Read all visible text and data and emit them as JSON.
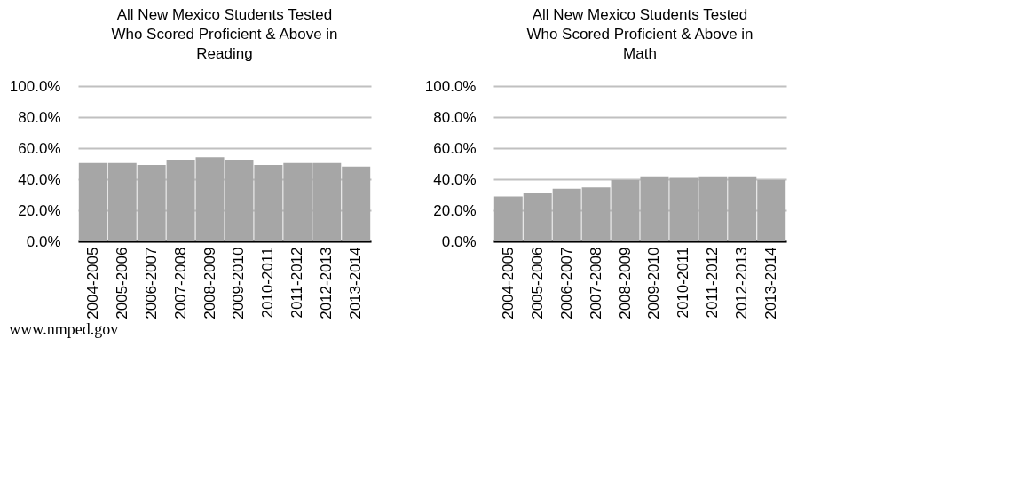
{
  "chart_data": [
    {
      "type": "bar",
      "title": "All New Mexico Students Tested\nWho Scored Proficient & Above in\nReading",
      "categories": [
        "2004-2005",
        "2005-2006",
        "2006-2007",
        "2007-2008",
        "2008-2009",
        "2009-2010",
        "2010-2011",
        "2011-2012",
        "2012-2013",
        "2013-2014"
      ],
      "values": [
        50.4,
        50.4,
        49.1,
        52.6,
        54.1,
        52.6,
        49.1,
        50.4,
        50.4,
        48.2
      ],
      "color": "#a6a6a6",
      "ylim": [
        0,
        100
      ],
      "yticks": [
        {
          "value": 0,
          "label": "0.0%"
        },
        {
          "value": 20,
          "label": "20.0%"
        },
        {
          "value": 40,
          "label": "40.0%"
        },
        {
          "value": 60,
          "label": "60.0%"
        },
        {
          "value": 80,
          "label": "80.0%"
        },
        {
          "value": 100,
          "label": "100.0%"
        }
      ],
      "grid": "y",
      "annotations": [
        "www.nmped.gov"
      ]
    },
    {
      "type": "bar",
      "title": "All New Mexico Students Tested\nWho Scored Proficient & Above in\nMath",
      "categories": [
        "2004-2005",
        "2005-2006",
        "2006-2007",
        "2007-2008",
        "2008-2009",
        "2009-2010",
        "2010-2011",
        "2011-2012",
        "2012-2013",
        "2013-2014"
      ],
      "values": [
        28.9,
        31.3,
        33.8,
        34.7,
        39.5,
        41.9,
        40.9,
        41.9,
        41.9,
        39.5
      ],
      "color": "#a6a6a6",
      "ylim": [
        0,
        100
      ],
      "yticks": [
        {
          "value": 0,
          "label": "0.0%"
        },
        {
          "value": 20,
          "label": "20.0%"
        },
        {
          "value": 40,
          "label": "40.0%"
        },
        {
          "value": 60,
          "label": "60.0%"
        },
        {
          "value": 80,
          "label": "80.0%"
        },
        {
          "value": 100,
          "label": "100.0%"
        }
      ],
      "grid": "y"
    }
  ]
}
